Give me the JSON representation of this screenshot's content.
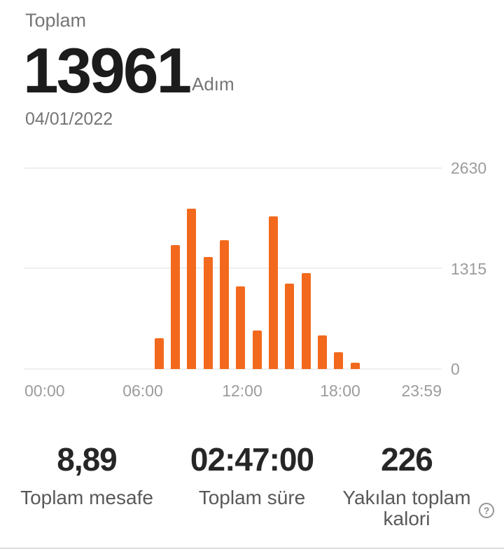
{
  "header": {
    "period_label": "Toplam",
    "steps_value": "13961",
    "steps_unit": "Adım",
    "date": "04/01/2022"
  },
  "chart_data": {
    "type": "bar",
    "title": "",
    "xlabel": "",
    "ylabel": "",
    "x_unit": "hour of day",
    "hours": [
      7,
      8,
      9,
      10,
      11,
      12,
      13,
      14,
      15,
      16,
      17,
      18,
      19
    ],
    "values": [
      400,
      1622,
      2100,
      1463,
      1684,
      1081,
      501,
      2000,
      1118,
      1255,
      440,
      217,
      80
    ],
    "x_ticks": [
      "00:00",
      "06:00",
      "12:00",
      "18:00",
      "23:59"
    ],
    "y_ticks": [
      "2630",
      "1315",
      "0"
    ],
    "ylim": [
      0,
      2630
    ],
    "xlim_hours": [
      0,
      24
    ],
    "grid": true,
    "y_axis_side": "right",
    "legend_position": "none",
    "bar_color": "#F2691D"
  },
  "stats": [
    {
      "value": "8,89",
      "label": "Toplam mesafe"
    },
    {
      "value": "02:47:00",
      "label": "Toplam süre"
    },
    {
      "value": "226",
      "label": "Yakılan toplam kalori"
    }
  ],
  "help_icon": {
    "glyph": "?"
  },
  "colors": {
    "accent": "#F2691D",
    "primary_text": "#1c1c1c",
    "secondary_text": "#757575",
    "axis_text": "#9c9c9c",
    "gridline": "#eeeeee"
  }
}
